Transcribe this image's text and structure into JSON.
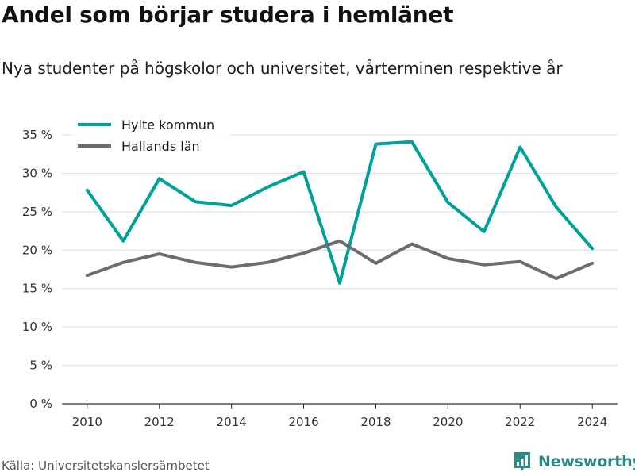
{
  "header": {
    "title": "Andel som börjar studera i hemlänet",
    "subtitle": "Nya studenter på högskolor och universitet, vårterminen respektive år"
  },
  "footer": {
    "source": "Källa: Universitetskanslersämbetet",
    "brand": "Newsworthy"
  },
  "colors": {
    "hylte": "#00a19a",
    "halland": "#6e6c73",
    "grid": "#dcdcdc",
    "brand": "#2b8a84"
  },
  "chart_data": {
    "type": "line",
    "title": "Andel som börjar studera i hemlänet",
    "subtitle": "Nya studenter på högskolor och universitet, vårterminen respektive år",
    "x": [
      2010,
      2011,
      2012,
      2013,
      2014,
      2015,
      2016,
      2017,
      2018,
      2019,
      2020,
      2021,
      2022,
      2023,
      2024
    ],
    "x_ticks": [
      2010,
      2012,
      2014,
      2016,
      2018,
      2020,
      2022,
      2024
    ],
    "y_ticks": [
      0,
      5,
      10,
      15,
      20,
      25,
      30,
      35
    ],
    "y_tick_labels": [
      "0 %",
      "5 %",
      "10 %",
      "15 %",
      "20 %",
      "25 %",
      "30 %",
      "35 %"
    ],
    "xlim": [
      2009.3,
      2024.7
    ],
    "ylim": [
      0,
      35
    ],
    "grid": true,
    "legend_position": "top-left",
    "series": [
      {
        "name": "Hylte kommun",
        "color": "#00a19a",
        "values": [
          27.8,
          21.2,
          29.3,
          26.3,
          25.8,
          28.2,
          30.2,
          15.7,
          33.8,
          34.1,
          26.2,
          22.4,
          33.4,
          25.6,
          20.2
        ]
      },
      {
        "name": "Hallands län",
        "color": "#6e6c73",
        "values": [
          16.7,
          18.4,
          19.5,
          18.4,
          17.8,
          18.4,
          19.6,
          21.2,
          18.3,
          20.8,
          18.9,
          18.1,
          18.5,
          16.3,
          18.3
        ]
      }
    ]
  }
}
